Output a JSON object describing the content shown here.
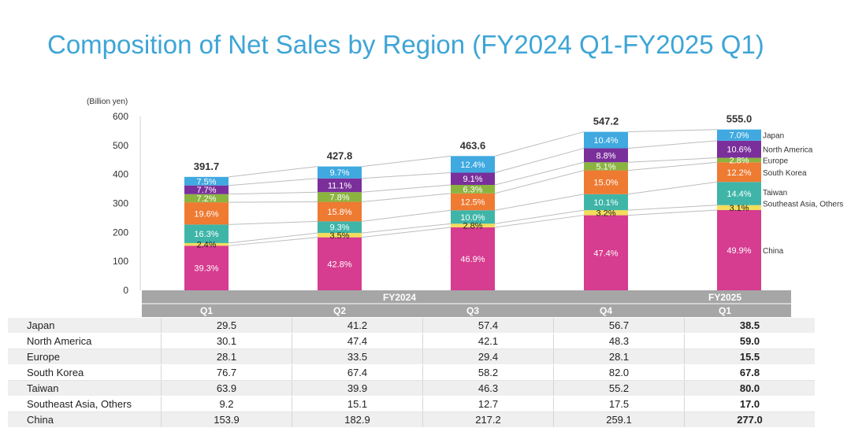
{
  "title": "Composition of Net Sales by Region (FY2024 Q1-FY2025 Q1)",
  "colors": {
    "Japan": "#3fa9e0",
    "North America": "#7a2f9b",
    "Europe": "#8ab43f",
    "South Korea": "#ef7a32",
    "Taiwan": "#3fb5a8",
    "Southeast Asia, Others": "#f3dd5b",
    "China": "#d63c8f",
    "header_bg": "#a6a6a6",
    "title": "#3ea5d6"
  },
  "chart_data": {
    "type": "bar",
    "stacked": true,
    "unit_label": "(Billion yen)",
    "ylim": [
      0,
      600
    ],
    "yticks": [
      0,
      100,
      200,
      300,
      400,
      500,
      600
    ],
    "grid": false,
    "categories": [
      "Q1",
      "Q2",
      "Q3",
      "Q4",
      "Q1"
    ],
    "fiscal_years": [
      {
        "label": "FY2024",
        "span": [
          0,
          3
        ]
      },
      {
        "label": "FY2025",
        "span": [
          4,
          4
        ]
      }
    ],
    "totals": [
      "391.7",
      "427.8",
      "463.6",
      "547.2",
      "555.0"
    ],
    "series": [
      {
        "name": "China",
        "values": [
          153.9,
          182.9,
          217.2,
          259.1,
          277.0
        ],
        "values_text": [
          "153.9",
          "182.9",
          "217.2",
          "259.1",
          "277.0"
        ],
        "pct": [
          "39.3%",
          "42.8%",
          "46.9%",
          "47.4%",
          "49.9%"
        ]
      },
      {
        "name": "Southeast Asia, Others",
        "values": [
          9.2,
          15.1,
          12.7,
          17.5,
          17.0
        ],
        "values_text": [
          "9.2",
          "15.1",
          "12.7",
          "17.5",
          "17.0"
        ],
        "pct": [
          "2.4%",
          "3.5%",
          "2.8%",
          "3.2%",
          "3.1%"
        ]
      },
      {
        "name": "Taiwan",
        "values": [
          63.9,
          39.9,
          46.3,
          55.2,
          80.0
        ],
        "values_text": [
          "63.9",
          "39.9",
          "46.3",
          "55.2",
          "80.0"
        ],
        "pct": [
          "16.3%",
          "9.3%",
          "10.0%",
          "10.1%",
          "14.4%"
        ]
      },
      {
        "name": "South Korea",
        "values": [
          76.7,
          67.4,
          58.2,
          82.0,
          67.8
        ],
        "values_text": [
          "76.7",
          "67.4",
          "58.2",
          "82.0",
          "67.8"
        ],
        "pct": [
          "19.6%",
          "15.8%",
          "12.5%",
          "15.0%",
          "12.2%"
        ]
      },
      {
        "name": "Europe",
        "values": [
          28.1,
          33.5,
          29.4,
          28.1,
          15.5
        ],
        "values_text": [
          "28.1",
          "33.5",
          "29.4",
          "28.1",
          "15.5"
        ],
        "pct": [
          "7.2%",
          "7.8%",
          "6.3%",
          "5.1%",
          "2.8%"
        ]
      },
      {
        "name": "North America",
        "values": [
          30.1,
          47.4,
          42.1,
          48.3,
          59.0
        ],
        "values_text": [
          "30.1",
          "47.4",
          "42.1",
          "48.3",
          "59.0"
        ],
        "pct": [
          "7.7%",
          "11.1%",
          "9.1%",
          "8.8%",
          "10.6%"
        ]
      },
      {
        "name": "Japan",
        "values": [
          29.5,
          41.2,
          57.4,
          56.7,
          38.5
        ],
        "values_text": [
          "29.5",
          "41.2",
          "57.4",
          "56.7",
          "38.5"
        ],
        "pct": [
          "7.5%",
          "9.7%",
          "12.4%",
          "10.4%",
          "7.0%"
        ]
      }
    ],
    "table_row_order": [
      "Japan",
      "North America",
      "Europe",
      "South Korea",
      "Taiwan",
      "Southeast Asia, Others",
      "China"
    ]
  }
}
